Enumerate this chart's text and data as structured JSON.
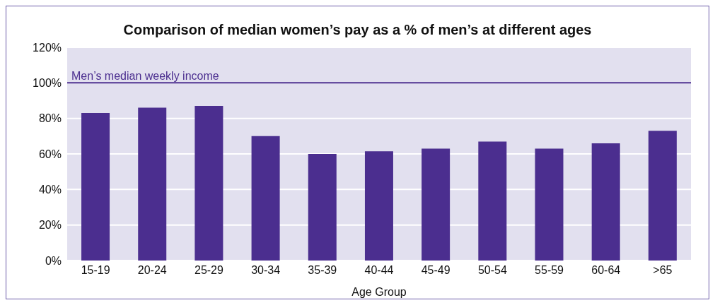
{
  "chart_data": {
    "type": "bar",
    "title": "Comparison of median women’s pay as a % of men’s at different ages",
    "xlabel": "Age Group",
    "categories": [
      "15-19",
      "20-24",
      "25-29",
      "30-34",
      "35-39",
      "40-44",
      "45-49",
      "50-54",
      "55-59",
      "60-64",
      ">65"
    ],
    "values": [
      83,
      86,
      87,
      70,
      60,
      61.5,
      63,
      67,
      63,
      66,
      73
    ],
    "color": "#4b2e8f",
    "ylim": [
      0,
      120
    ],
    "yticks": [
      {
        "value": 0,
        "label": "0%"
      },
      {
        "value": 20,
        "label": "20%"
      },
      {
        "value": 40,
        "label": "40%"
      },
      {
        "value": 60,
        "label": "60%"
      },
      {
        "value": 80,
        "label": "80%"
      },
      {
        "value": 100,
        "label": "100%"
      },
      {
        "value": 120,
        "label": "120%"
      }
    ],
    "grid": "y",
    "ref_lines": [
      {
        "axis": "y",
        "value": 100,
        "label": "Men’s median weekly income",
        "color": "#4b2e8f"
      }
    ]
  }
}
